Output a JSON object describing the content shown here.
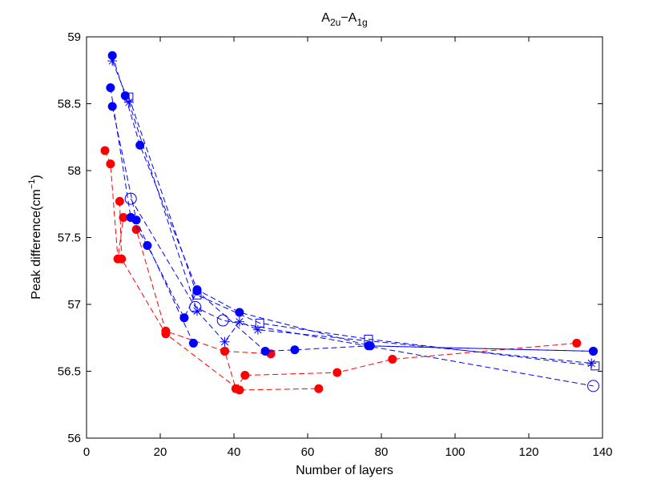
{
  "chart_data": {
    "type": "line",
    "title": {
      "main": "A",
      "sub1": "2u",
      "dash": "−A",
      "sub2": "1g"
    },
    "xlabel": "Number of layers",
    "ylabel": {
      "text": "Peak difference(cm",
      "sup": "−1",
      "close": ")"
    },
    "xlim": [
      0,
      140
    ],
    "ylim": [
      56,
      59
    ],
    "xticks": [
      0,
      20,
      40,
      60,
      80,
      100,
      120,
      140
    ],
    "yticks": [
      56,
      56.5,
      57,
      57.5,
      58,
      58.5,
      59
    ],
    "xtick_labels": [
      "0",
      "20",
      "40",
      "60",
      "80",
      "100",
      "120",
      "140"
    ],
    "ytick_labels": [
      "56",
      "56.5",
      "57",
      "57.5",
      "58",
      "58.5",
      "59"
    ],
    "grid": false,
    "colors": {
      "blue": "#0000ff",
      "red": "#ff0000"
    },
    "series": [
      {
        "name": "red-dots-a",
        "color": "#ff0000",
        "marker": "filled-circle",
        "line": "dashed",
        "x": [
          5,
          6.5,
          8.5,
          10,
          12,
          13.5,
          21.5,
          37.5,
          40.5,
          43,
          68,
          83,
          133
        ],
        "y": [
          58.15,
          58.05,
          57.34,
          57.65,
          57.65,
          57.56,
          56.8,
          56.65,
          56.37,
          56.47,
          56.49,
          56.59,
          56.71
        ]
      },
      {
        "name": "red-dots-b",
        "color": "#ff0000",
        "marker": "filled-circle",
        "line": "dashed",
        "x": [
          9,
          9.5,
          21.5,
          41.5,
          63
        ],
        "y": [
          57.77,
          57.34,
          56.78,
          56.36,
          56.37
        ]
      },
      {
        "name": "red-dots-c",
        "color": "#ff0000",
        "marker": "filled-circle",
        "line": "dashed",
        "x": [
          37.5,
          50
        ],
        "y": [
          56.65,
          56.63
        ]
      },
      {
        "name": "blue-dots-a",
        "color": "#0000ff",
        "marker": "filled-circle",
        "line": "dashed",
        "x": [
          7,
          10.5,
          14.5,
          30,
          41.5,
          77,
          137.5
        ],
        "y": [
          58.86,
          58.56,
          58.19,
          57.11,
          56.94,
          56.69,
          56.65
        ]
      },
      {
        "name": "blue-dots-b",
        "color": "#0000ff",
        "marker": "filled-circle",
        "line": "dashed",
        "x": [
          6.5,
          12,
          16.5,
          26.5,
          30,
          48.5,
          56.5,
          76.5,
          137.5
        ],
        "y": [
          58.62,
          57.65,
          57.44,
          56.9,
          57.1,
          56.65,
          56.66,
          56.69,
          56.65
        ]
      },
      {
        "name": "blue-dots-c",
        "color": "#0000ff",
        "marker": "filled-circle",
        "line": "dashed",
        "x": [
          7,
          13.5,
          29
        ],
        "y": [
          58.48,
          57.63,
          56.71
        ]
      },
      {
        "name": "blue-stars",
        "color": "#0000ff",
        "marker": "star",
        "line": "dashed",
        "x": [
          7,
          11.5,
          30,
          37.5,
          41.5,
          46.5,
          137
        ],
        "y": [
          58.82,
          58.51,
          56.95,
          56.72,
          56.87,
          56.81,
          56.56
        ]
      },
      {
        "name": "blue-squares",
        "color": "#0000ff",
        "marker": "open-square",
        "line": "dashed",
        "x": [
          11.5,
          30,
          47,
          76.5,
          138
        ],
        "y": [
          58.55,
          57.07,
          56.86,
          56.74,
          56.54
        ]
      },
      {
        "name": "blue-circles",
        "color": "#0000ff",
        "marker": "open-circle",
        "line": "dashed",
        "x": [
          12,
          29.5,
          37,
          137.5
        ],
        "y": [
          57.79,
          56.98,
          56.88,
          56.39
        ]
      }
    ]
  }
}
